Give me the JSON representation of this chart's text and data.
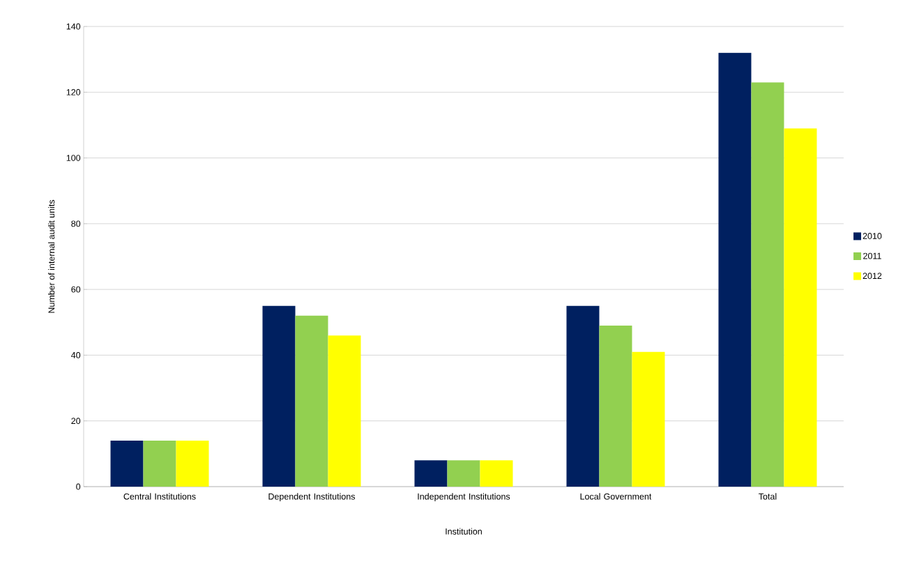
{
  "chart_data": {
    "type": "bar",
    "xlabel": "Institution",
    "ylabel": "Number of internal audit units",
    "categories": [
      "Central Institutions",
      "Dependent Institutions",
      "Independent Institutions",
      "Local Government",
      "Total"
    ],
    "series": [
      {
        "name": "2010",
        "color": "#002060",
        "values": [
          14,
          55,
          8,
          55,
          132
        ]
      },
      {
        "name": "2011",
        "color": "#92d050",
        "values": [
          14,
          52,
          8,
          49,
          123
        ]
      },
      {
        "name": "2012",
        "color": "#ffff00",
        "values": [
          14,
          46,
          8,
          41,
          109
        ]
      }
    ],
    "ylim": [
      0,
      140
    ],
    "yticks": [
      0,
      20,
      40,
      60,
      80,
      100,
      120,
      140
    ],
    "grid": "y",
    "legend": "right"
  }
}
